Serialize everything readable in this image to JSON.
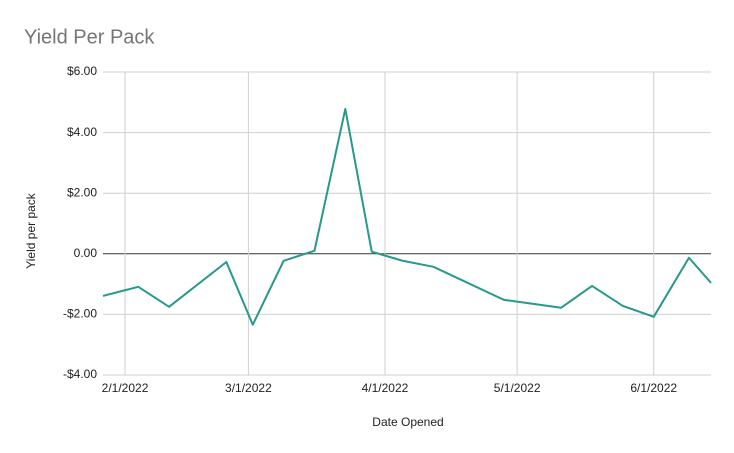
{
  "chart_data": {
    "type": "line",
    "title": "Yield Per Pack",
    "xlabel": "Date Opened",
    "ylabel": "Yield per pack",
    "x": [
      "1/27/2022",
      "2/4/2022",
      "2/11/2022",
      "2/24/2022",
      "3/2/2022",
      "3/9/2022",
      "3/16/2022",
      "3/23/2022",
      "3/29/2022",
      "4/5/2022",
      "4/12/2022",
      "4/28/2022",
      "5/11/2022",
      "5/18/2022",
      "5/25/2022",
      "6/1/2022",
      "6/9/2022",
      "6/14/2022"
    ],
    "series": [
      {
        "name": "Yield per pack",
        "color": "#26998a",
        "values": [
          -1.39,
          -1.09,
          -1.75,
          -0.27,
          -2.34,
          -0.23,
          0.1,
          4.78,
          0.07,
          -0.23,
          -0.43,
          -1.52,
          -1.78,
          -1.06,
          -1.72,
          -2.08,
          -0.13,
          -0.96
        ]
      }
    ],
    "xlim": [
      "1/27/2022",
      "6/14/2022"
    ],
    "xticks": [
      "2/1/2022",
      "3/1/2022",
      "4/1/2022",
      "5/1/2022",
      "6/1/2022"
    ],
    "ylim": [
      -4,
      6
    ],
    "yticks": [
      {
        "value": -4,
        "label": "-$4.00"
      },
      {
        "value": -2,
        "label": "-$2.00"
      },
      {
        "value": 0,
        "label": "0.00"
      },
      {
        "value": 2,
        "label": "$2.00"
      },
      {
        "value": 4,
        "label": "$4.00"
      },
      {
        "value": 6,
        "label": "$6.00"
      }
    ],
    "grid": true
  }
}
